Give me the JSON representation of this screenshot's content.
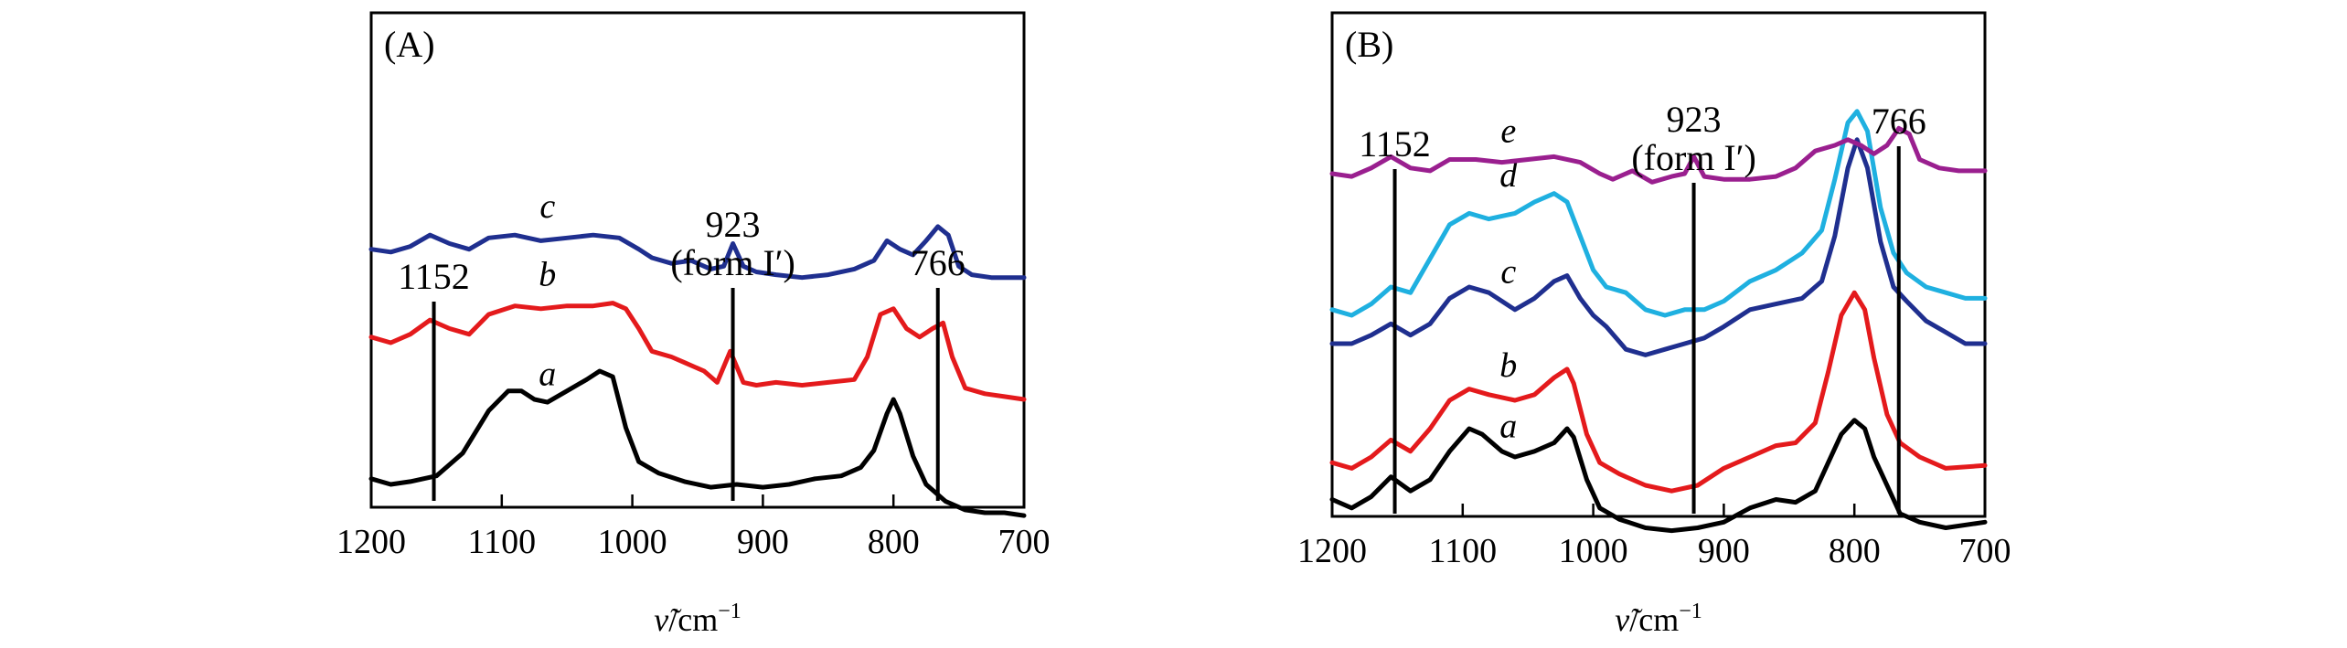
{
  "chart_data": [
    {
      "type": "line",
      "panel_label": "(A)",
      "xlabel": "ν̃/cm⁻¹",
      "xlabel_base": "ν̃",
      "xlabel_unit": "/cm",
      "xlabel_exp": "−1",
      "xlim": [
        1200,
        700
      ],
      "x_reversed": true,
      "x_ticks": [
        "1200",
        "1100",
        "1000",
        "900",
        "800",
        "700"
      ],
      "y_axis_visible": false,
      "grid": false,
      "markers": [
        {
          "x": 1152,
          "text": "1152",
          "lines": [
            "1152"
          ]
        },
        {
          "x": 923,
          "text": "923 (form I′)",
          "lines": [
            "923",
            "(form I′)"
          ]
        },
        {
          "x": 766,
          "text": "766",
          "lines": [
            "766"
          ]
        }
      ],
      "series": [
        {
          "name": "a",
          "color": "#000000",
          "label_x": 1065,
          "x": [
            1200,
            1185,
            1170,
            1150,
            1130,
            1110,
            1095,
            1085,
            1075,
            1065,
            1050,
            1035,
            1025,
            1015,
            1005,
            995,
            980,
            960,
            940,
            920,
            900,
            880,
            860,
            840,
            825,
            815,
            805,
            800,
            795,
            785,
            775,
            760,
            745,
            730,
            715,
            700
          ],
          "y": [
            0.02,
            0.0,
            0.01,
            0.03,
            0.11,
            0.26,
            0.33,
            0.33,
            0.3,
            0.29,
            0.33,
            0.37,
            0.4,
            0.38,
            0.2,
            0.08,
            0.04,
            0.01,
            -0.01,
            0.0,
            -0.01,
            0.0,
            0.02,
            0.03,
            0.06,
            0.12,
            0.25,
            0.3,
            0.25,
            0.1,
            0.0,
            -0.06,
            -0.09,
            -0.1,
            -0.1,
            -0.11
          ]
        },
        {
          "name": "b",
          "color": "#e41a1c",
          "label_x": 1065,
          "x": [
            1200,
            1185,
            1170,
            1155,
            1140,
            1125,
            1110,
            1090,
            1070,
            1050,
            1030,
            1015,
            1005,
            995,
            985,
            970,
            960,
            945,
            935,
            925,
            915,
            905,
            890,
            870,
            850,
            830,
            820,
            810,
            800,
            790,
            780,
            770,
            762,
            755,
            745,
            730,
            715,
            700
          ],
          "y": [
            0.52,
            0.5,
            0.53,
            0.58,
            0.55,
            0.53,
            0.6,
            0.63,
            0.62,
            0.63,
            0.63,
            0.64,
            0.62,
            0.55,
            0.47,
            0.45,
            0.43,
            0.4,
            0.36,
            0.47,
            0.36,
            0.35,
            0.36,
            0.35,
            0.36,
            0.37,
            0.45,
            0.6,
            0.62,
            0.55,
            0.52,
            0.55,
            0.57,
            0.45,
            0.34,
            0.32,
            0.31,
            0.3
          ]
        },
        {
          "name": "c",
          "color": "#1f2f8f",
          "label_x": 1065,
          "x": [
            1200,
            1185,
            1170,
            1155,
            1140,
            1125,
            1110,
            1090,
            1070,
            1050,
            1030,
            1010,
            995,
            985,
            970,
            955,
            940,
            930,
            923,
            915,
            905,
            890,
            870,
            850,
            830,
            815,
            805,
            795,
            785,
            775,
            766,
            758,
            750,
            740,
            725,
            700
          ],
          "y": [
            0.83,
            0.82,
            0.84,
            0.88,
            0.85,
            0.83,
            0.87,
            0.88,
            0.86,
            0.87,
            0.88,
            0.87,
            0.83,
            0.8,
            0.78,
            0.79,
            0.76,
            0.77,
            0.85,
            0.77,
            0.75,
            0.74,
            0.73,
            0.74,
            0.76,
            0.79,
            0.86,
            0.83,
            0.81,
            0.86,
            0.91,
            0.88,
            0.77,
            0.74,
            0.73,
            0.73
          ]
        }
      ]
    },
    {
      "type": "line",
      "panel_label": "(B)",
      "xlabel": "ν̃/cm⁻¹",
      "xlabel_base": "ν̃",
      "xlabel_unit": "/cm",
      "xlabel_exp": "−1",
      "xlim": [
        1200,
        700
      ],
      "x_reversed": true,
      "x_ticks": [
        "1200",
        "1100",
        "1000",
        "900",
        "800",
        "700"
      ],
      "y_axis_visible": false,
      "grid": false,
      "markers": [
        {
          "x": 1152,
          "text": "1152",
          "lines": [
            "1152"
          ]
        },
        {
          "x": 923,
          "text": "923 (form I′)",
          "lines": [
            "923",
            "(form I′)"
          ]
        },
        {
          "x": 766,
          "text": "766",
          "lines": [
            "766"
          ]
        }
      ],
      "series": [
        {
          "name": "a",
          "color": "#000000",
          "label_x": 1065,
          "x": [
            1200,
            1185,
            1170,
            1155,
            1140,
            1125,
            1110,
            1095,
            1085,
            1070,
            1060,
            1045,
            1030,
            1020,
            1015,
            1005,
            995,
            980,
            960,
            940,
            920,
            900,
            880,
            860,
            845,
            830,
            820,
            810,
            800,
            792,
            785,
            775,
            765,
            750,
            730,
            700
          ],
          "y": [
            0.05,
            0.02,
            0.06,
            0.13,
            0.08,
            0.12,
            0.22,
            0.3,
            0.28,
            0.22,
            0.2,
            0.22,
            0.25,
            0.3,
            0.27,
            0.12,
            0.02,
            -0.02,
            -0.05,
            -0.06,
            -0.05,
            -0.03,
            0.02,
            0.05,
            0.04,
            0.08,
            0.18,
            0.28,
            0.33,
            0.3,
            0.2,
            0.1,
            0.0,
            -0.03,
            -0.05,
            -0.03
          ]
        },
        {
          "name": "b",
          "color": "#e41a1c",
          "label_x": 1065,
          "x": [
            1200,
            1185,
            1170,
            1155,
            1140,
            1125,
            1110,
            1095,
            1080,
            1060,
            1045,
            1030,
            1020,
            1015,
            1005,
            995,
            980,
            960,
            940,
            920,
            900,
            880,
            860,
            845,
            830,
            820,
            810,
            800,
            792,
            785,
            775,
            765,
            750,
            730,
            700
          ],
          "y": [
            0.18,
            0.16,
            0.2,
            0.26,
            0.22,
            0.3,
            0.4,
            0.44,
            0.42,
            0.4,
            0.42,
            0.48,
            0.51,
            0.46,
            0.28,
            0.18,
            0.14,
            0.1,
            0.08,
            0.1,
            0.16,
            0.2,
            0.24,
            0.25,
            0.32,
            0.5,
            0.7,
            0.78,
            0.72,
            0.55,
            0.35,
            0.25,
            0.2,
            0.16,
            0.17
          ]
        },
        {
          "name": "c",
          "color": "#1f2f8f",
          "label_x": 1065,
          "x": [
            1200,
            1185,
            1170,
            1155,
            1140,
            1125,
            1110,
            1095,
            1080,
            1060,
            1045,
            1030,
            1020,
            1010,
            1000,
            990,
            975,
            960,
            945,
            930,
            915,
            900,
            880,
            860,
            840,
            825,
            815,
            805,
            798,
            790,
            780,
            770,
            760,
            745,
            730,
            715,
            700
          ],
          "y": [
            0.6,
            0.6,
            0.63,
            0.67,
            0.63,
            0.67,
            0.76,
            0.8,
            0.78,
            0.72,
            0.76,
            0.82,
            0.84,
            0.76,
            0.7,
            0.66,
            0.58,
            0.56,
            0.58,
            0.6,
            0.62,
            0.66,
            0.72,
            0.74,
            0.76,
            0.82,
            0.98,
            1.22,
            1.32,
            1.22,
            0.96,
            0.8,
            0.75,
            0.68,
            0.64,
            0.6,
            0.6
          ]
        },
        {
          "name": "d",
          "color": "#1fb0e0",
          "label_x": 1065,
          "x": [
            1200,
            1185,
            1170,
            1155,
            1140,
            1125,
            1110,
            1095,
            1080,
            1060,
            1045,
            1030,
            1020,
            1010,
            1000,
            990,
            975,
            960,
            945,
            930,
            915,
            900,
            880,
            860,
            840,
            825,
            815,
            805,
            798,
            790,
            780,
            770,
            760,
            745,
            730,
            715,
            700
          ],
          "y": [
            0.72,
            0.7,
            0.74,
            0.8,
            0.78,
            0.9,
            1.02,
            1.06,
            1.04,
            1.06,
            1.1,
            1.13,
            1.1,
            0.98,
            0.86,
            0.8,
            0.78,
            0.72,
            0.7,
            0.72,
            0.72,
            0.75,
            0.82,
            0.86,
            0.92,
            1.0,
            1.18,
            1.38,
            1.42,
            1.35,
            1.08,
            0.92,
            0.85,
            0.8,
            0.78,
            0.76,
            0.76
          ]
        },
        {
          "name": "e",
          "color": "#9a1f8f",
          "label_x": 1065,
          "x": [
            1200,
            1185,
            1170,
            1155,
            1140,
            1125,
            1110,
            1090,
            1070,
            1050,
            1030,
            1010,
            995,
            985,
            970,
            955,
            940,
            930,
            923,
            915,
            900,
            880,
            860,
            845,
            830,
            815,
            805,
            795,
            785,
            775,
            766,
            758,
            750,
            735,
            720,
            700
          ],
          "y": [
            1.2,
            1.19,
            1.22,
            1.26,
            1.22,
            1.21,
            1.25,
            1.25,
            1.24,
            1.25,
            1.26,
            1.24,
            1.2,
            1.18,
            1.21,
            1.17,
            1.19,
            1.2,
            1.26,
            1.19,
            1.18,
            1.18,
            1.19,
            1.22,
            1.28,
            1.3,
            1.32,
            1.3,
            1.27,
            1.3,
            1.36,
            1.34,
            1.25,
            1.22,
            1.21,
            1.21
          ]
        }
      ]
    }
  ]
}
